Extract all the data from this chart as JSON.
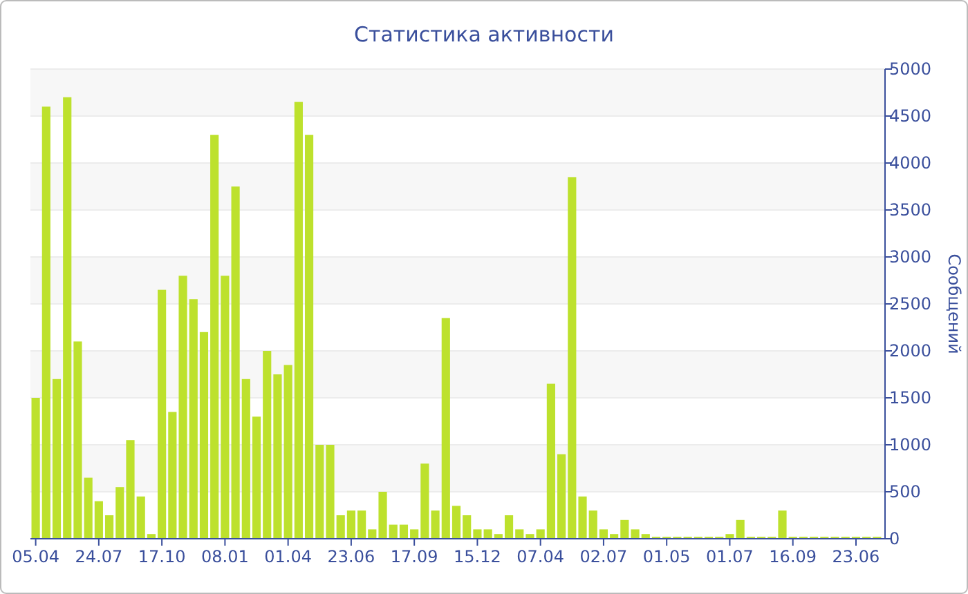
{
  "chart_data": {
    "type": "bar",
    "title": "Статистика активности",
    "ylabel": "Сообщений",
    "categories": [
      "05.04",
      null,
      null,
      null,
      null,
      null,
      "24.07",
      null,
      null,
      null,
      null,
      null,
      "17.10",
      null,
      null,
      null,
      null,
      null,
      "08.01",
      null,
      null,
      null,
      null,
      null,
      "01.04",
      null,
      null,
      null,
      null,
      null,
      "23.06",
      null,
      null,
      null,
      null,
      null,
      "17.09",
      null,
      null,
      null,
      null,
      null,
      "15.12",
      null,
      null,
      null,
      null,
      null,
      "07.04",
      null,
      null,
      null,
      null,
      null,
      "02.07",
      null,
      null,
      null,
      null,
      null,
      "01.05",
      null,
      null,
      null,
      null,
      null,
      "01.07",
      null,
      null,
      null,
      null,
      null,
      "16.09",
      null,
      null,
      null,
      null,
      null,
      "23.06",
      null,
      null
    ],
    "values": [
      1500,
      4600,
      1700,
      4700,
      2100,
      650,
      400,
      250,
      550,
      1050,
      450,
      50,
      2650,
      1350,
      2800,
      2550,
      2200,
      4300,
      2800,
      3750,
      1700,
      1300,
      2000,
      1750,
      1850,
      4650,
      4300,
      1000,
      1000,
      250,
      300,
      300,
      100,
      500,
      150,
      150,
      100,
      800,
      300,
      2350,
      350,
      250,
      100,
      100,
      50,
      250,
      100,
      50,
      100,
      1650,
      900,
      3850,
      450,
      300,
      100,
      50,
      200,
      100,
      50,
      20,
      20,
      20,
      20,
      20,
      20,
      20,
      50,
      200,
      20,
      20,
      20,
      300,
      20,
      20,
      20,
      20,
      20,
      20,
      20,
      20,
      20
    ],
    "color": "#bde12d",
    "ylim": [
      0,
      5000
    ],
    "yticks": [
      0,
      500,
      1000,
      1500,
      2000,
      2500,
      3000,
      3500,
      4000,
      4500,
      5000
    ],
    "grid": "y"
  }
}
